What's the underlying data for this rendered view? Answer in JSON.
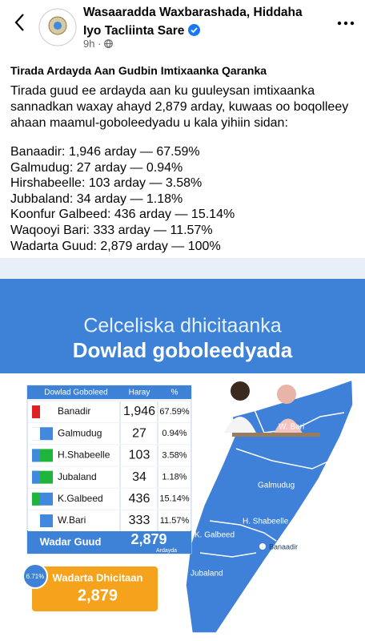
{
  "header": {
    "page_name": "Wasaaradda Waxbarashada, Hiddaha Iyo Tacliinta Sare",
    "time": "9h"
  },
  "post": {
    "title": "Tirada Ardayda Aan Gudbin Imtixaanka Qaranka",
    "body": "Tirada guud ee ardayda aan ku guuleysan imtixaanka sannadkan waxay ahayd 2,879 arday, kuwaas oo boqolleey ahaan maamul-goboleedyadu u kala yihiin sidan:",
    "list": [
      "Banaadir: 1,946 arday — 67.59%",
      "Galmudug: 27 arday — 0.94%",
      "Hirshabeelle: 103 arday — 3.58%",
      "Jubbaland: 34 arday — 1.18%",
      "Koonfur Galbeed: 436 arday — 15.14%",
      "Waqooyi Bari: 333 arday — 11.57%",
      "Wadarta Guud: 2,879 arday — 100%"
    ]
  },
  "image": {
    "title_line1": "Celceliska dhicitaanka",
    "title_line2": "Dowlad goboleedyada",
    "table": {
      "columns": [
        "Dowlad Goboleed",
        "Haray",
        "%"
      ],
      "rows": [
        [
          "Banadir",
          "1,946",
          "67.59%"
        ],
        [
          "Galmudug",
          "27",
          "0.94%"
        ],
        [
          "H.Shabeelle",
          "103",
          "3.58%"
        ],
        [
          "Jubaland",
          "34",
          "1.18%"
        ],
        [
          "K.Galbeed",
          "436",
          "15.14%"
        ],
        [
          "W.Bari",
          "333",
          "11.57%"
        ]
      ],
      "total": {
        "label": "Wadar Guud",
        "value": "2,879",
        "unit": "Ardayda"
      }
    },
    "map_labels": [
      "W. Bari",
      "Galmudug",
      "H. Shabeelle",
      "K. Galbeed",
      "Banaadir",
      "Jubaland"
    ],
    "badge": "6.71%",
    "summary": {
      "label": "Wadarta Dhicitaan",
      "value": "2,879"
    }
  }
}
